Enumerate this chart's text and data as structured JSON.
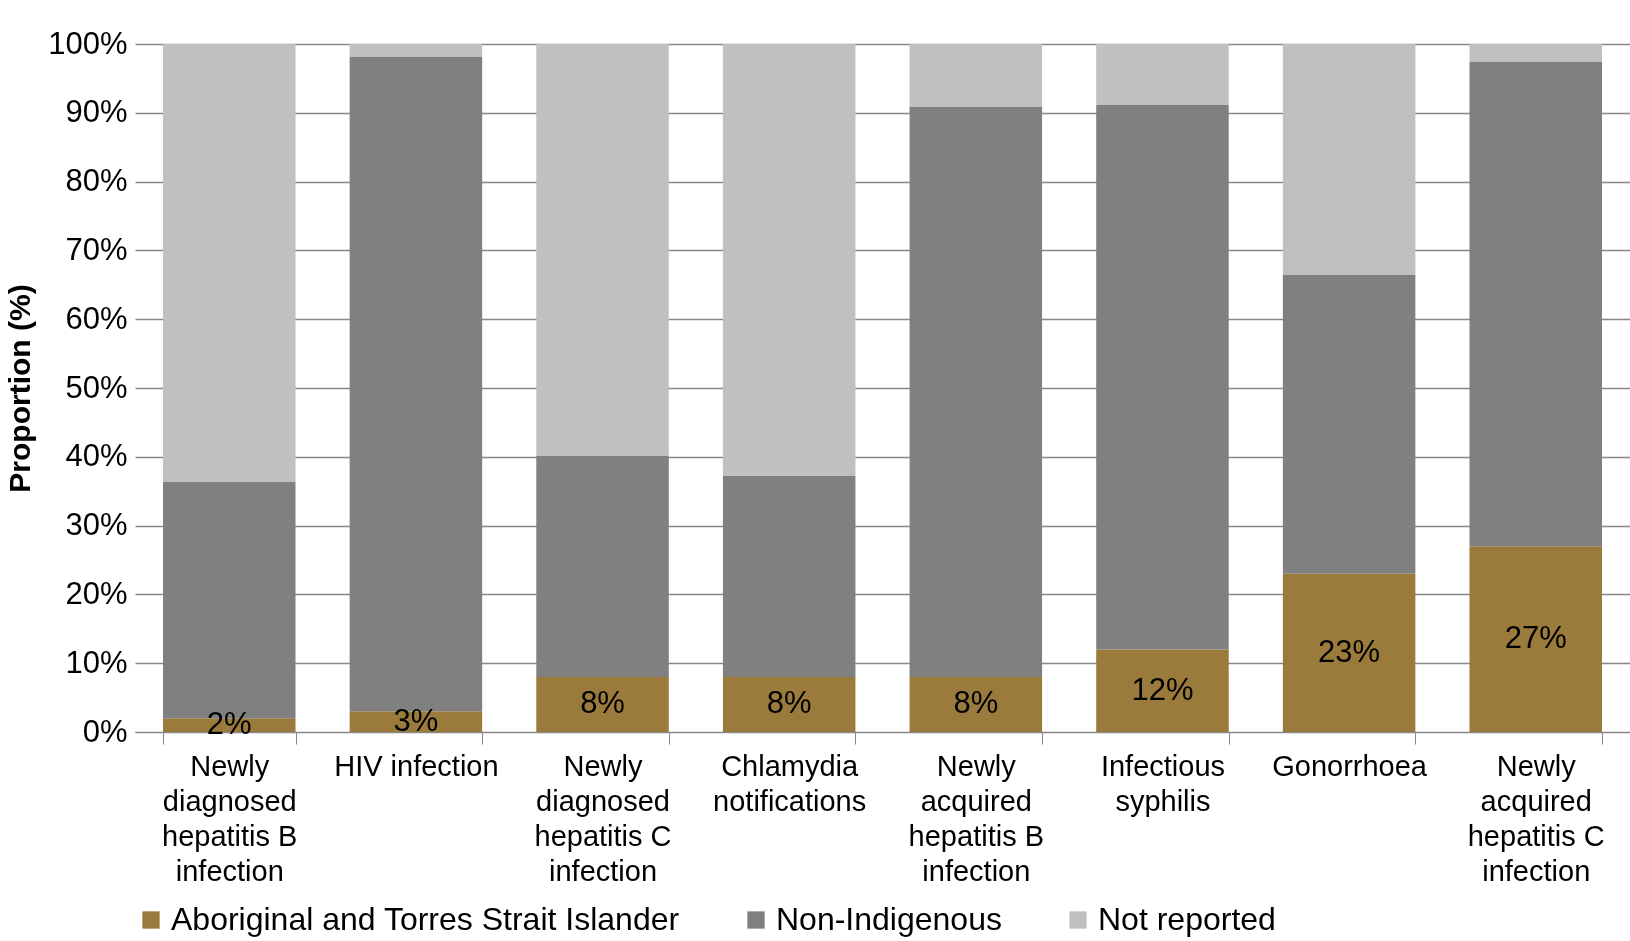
{
  "chart_data": {
    "type": "bar",
    "stacked": true,
    "ylabel": "Proportion (%)",
    "categories": [
      "Newly diagnosed hepatitis B infection",
      "HIV infection",
      "Newly diagnosed hepatitis C infection",
      "Chlamydia notifications",
      "Newly acquired hepatitis B infection",
      "Infectious syphilis",
      "Gonorrhoea",
      "Newly acquired hepatitis C infection"
    ],
    "series": [
      {
        "name": "Aboriginal and Torres Strait Islander",
        "color": "#9a7b3c",
        "values": [
          2,
          3,
          8,
          8,
          8,
          12,
          23,
          27
        ],
        "value_labels": [
          "2%",
          "3%",
          "8%",
          "8%",
          "8%",
          "12%",
          "23%",
          "27%"
        ]
      },
      {
        "name": "Non-Indigenous",
        "color": "#808080",
        "values": [
          34.4,
          95.2,
          32.2,
          29.2,
          82.9,
          79.2,
          43.5,
          70.4
        ]
      },
      {
        "name": "Not reported",
        "color": "#c0c0c0",
        "values": [
          63.6,
          1.8,
          59.8,
          62.8,
          9.1,
          8.8,
          33.5,
          2.6
        ]
      }
    ],
    "ylim": [
      0,
      100
    ],
    "yticks": [
      {
        "value": 0,
        "label": "0%"
      },
      {
        "value": 10,
        "label": "10%"
      },
      {
        "value": 20,
        "label": "20%"
      },
      {
        "value": 30,
        "label": "30%"
      },
      {
        "value": 40,
        "label": "40%"
      },
      {
        "value": 50,
        "label": "50%"
      },
      {
        "value": 60,
        "label": "60%"
      },
      {
        "value": 70,
        "label": "70%"
      },
      {
        "value": 80,
        "label": "80%"
      },
      {
        "value": 90,
        "label": "90%"
      },
      {
        "value": 100,
        "label": "100%"
      }
    ],
    "grid": "y",
    "legend": "bottom"
  }
}
